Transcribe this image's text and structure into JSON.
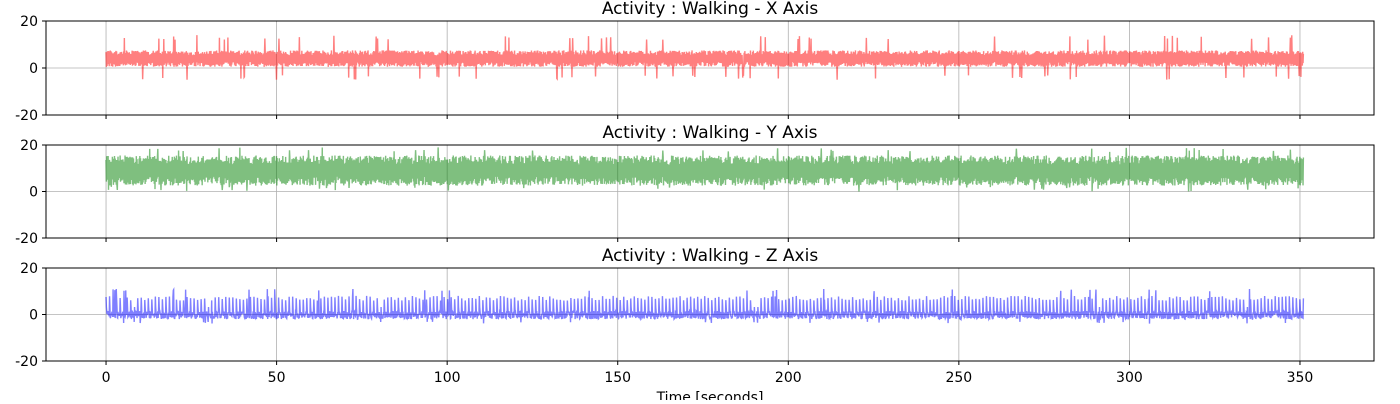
{
  "chart_data": [
    {
      "type": "line",
      "title": "Activity : Walking - X Axis",
      "xlabel": "",
      "ylabel": "",
      "xlim": [
        -17.6,
        371.7
      ],
      "ylim": [
        -20,
        20
      ],
      "yticks": [
        -20,
        0,
        20
      ],
      "xticks": [
        0,
        50,
        100,
        150,
        200,
        250,
        300,
        350
      ],
      "xtick_labels_shown": false,
      "grid": true,
      "color": "#ff0000",
      "alpha": 0.5,
      "series": [
        {
          "x_start": 0,
          "x_end": 351,
          "summary": {
            "baseline": 4,
            "typical_min": 1,
            "typical_max": 8,
            "observed_min": -5,
            "observed_max": 14
          }
        }
      ]
    },
    {
      "type": "line",
      "title": "Activity : Walking - Y Axis",
      "xlabel": "",
      "ylabel": "",
      "xlim": [
        -17.6,
        371.7
      ],
      "ylim": [
        -20,
        20
      ],
      "yticks": [
        -20,
        0,
        20
      ],
      "xticks": [
        0,
        50,
        100,
        150,
        200,
        250,
        300,
        350
      ],
      "xtick_labels_shown": false,
      "grid": true,
      "color": "#008000",
      "alpha": 0.5,
      "series": [
        {
          "x_start": 0,
          "x_end": 351,
          "summary": {
            "baseline": 9,
            "typical_min": 3,
            "typical_max": 16,
            "observed_min": 0,
            "observed_max": 19
          }
        }
      ]
    },
    {
      "type": "line",
      "title": "Activity : Walking - Z Axis",
      "xlabel": "Time [seconds]",
      "ylabel": "",
      "xlim": [
        -17.6,
        371.7
      ],
      "ylim": [
        -20,
        20
      ],
      "yticks": [
        -20,
        0,
        20
      ],
      "xticks": [
        0,
        50,
        100,
        150,
        200,
        250,
        300,
        350
      ],
      "xtick_labels_shown": true,
      "grid": true,
      "color": "#0000ff",
      "alpha": 0.5,
      "series": [
        {
          "x_start": 0,
          "x_end": 351,
          "summary": {
            "baseline": 0,
            "typical_min": -2,
            "typical_max": 8,
            "observed_min": -4,
            "observed_max": 11
          }
        }
      ]
    }
  ]
}
